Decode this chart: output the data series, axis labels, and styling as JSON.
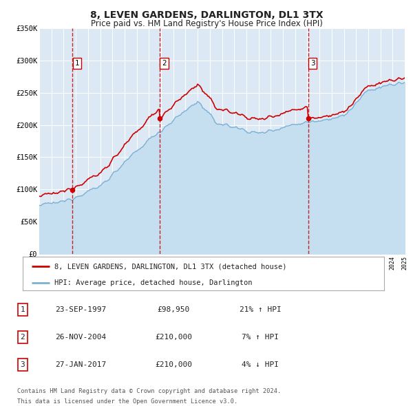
{
  "title": "8, LEVEN GARDENS, DARLINGTON, DL1 3TX",
  "subtitle": "Price paid vs. HM Land Registry's House Price Index (HPI)",
  "title_fontsize": 10,
  "subtitle_fontsize": 8.5,
  "bg_color": "#ffffff",
  "plot_bg_color": "#dce9f5",
  "grid_color": "#ffffff",
  "ylim": [
    0,
    350000
  ],
  "yticks": [
    0,
    50000,
    100000,
    150000,
    200000,
    250000,
    300000,
    350000
  ],
  "ytick_labels": [
    "£0",
    "£50K",
    "£100K",
    "£150K",
    "£200K",
    "£250K",
    "£300K",
    "£350K"
  ],
  "xstart": 1995,
  "xend": 2025,
  "sale_dates": [
    1997.73,
    2004.9,
    2017.07
  ],
  "sale_prices": [
    98950,
    210000,
    210000
  ],
  "sale_labels": [
    "1",
    "2",
    "3"
  ],
  "vline_color": "#cc0000",
  "dot_color": "#cc0000",
  "hpi_line_color": "#7ab0d4",
  "hpi_fill_color": "#c5dff0",
  "sale_line_color": "#cc0000",
  "legend_entries": [
    "8, LEVEN GARDENS, DARLINGTON, DL1 3TX (detached house)",
    "HPI: Average price, detached house, Darlington"
  ],
  "table_data": [
    [
      "1",
      "23-SEP-1997",
      "£98,950",
      "21% ↑ HPI"
    ],
    [
      "2",
      "26-NOV-2004",
      "£210,000",
      "7% ↑ HPI"
    ],
    [
      "3",
      "27-JAN-2017",
      "£210,000",
      "4% ↓ HPI"
    ]
  ],
  "footnote1": "Contains HM Land Registry data © Crown copyright and database right 2024.",
  "footnote2": "This data is licensed under the Open Government Licence v3.0."
}
